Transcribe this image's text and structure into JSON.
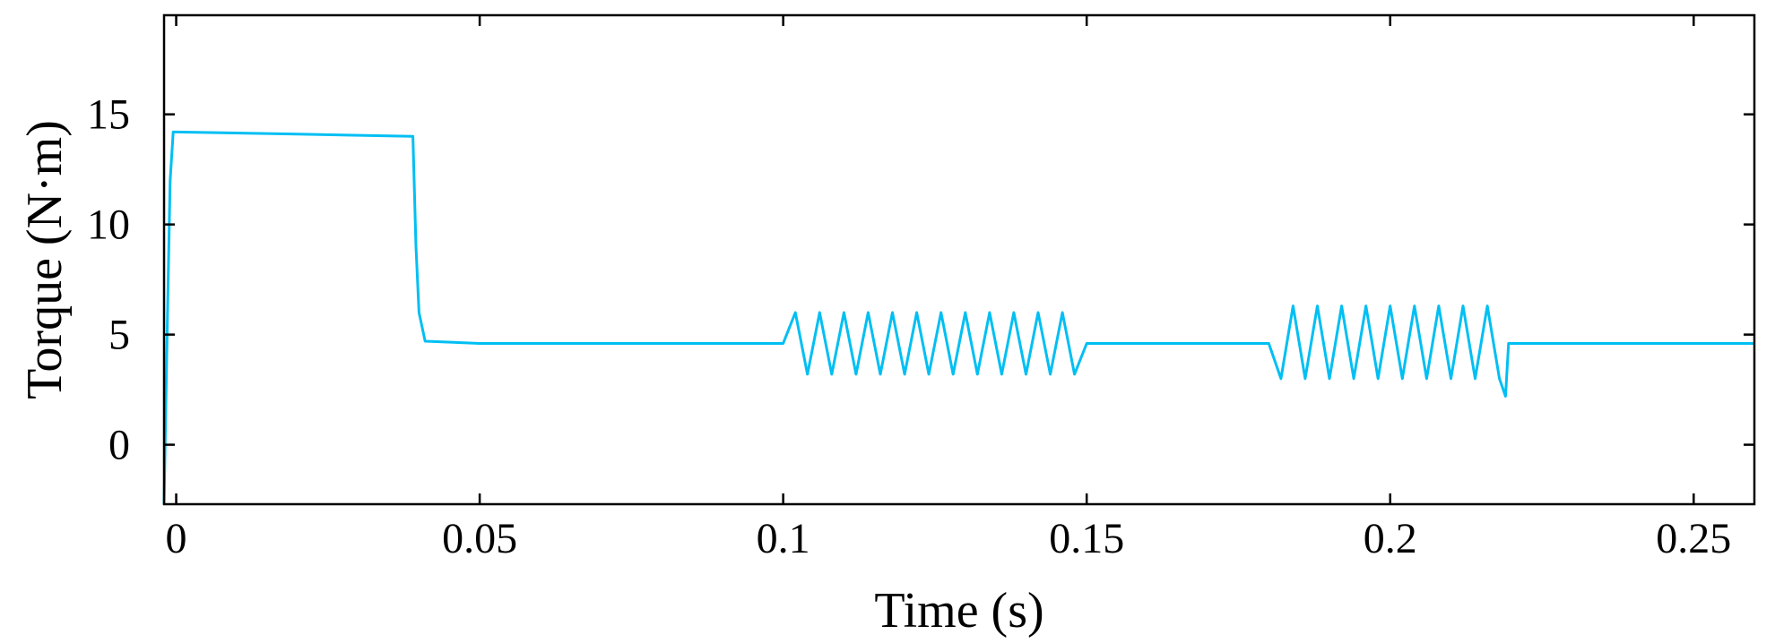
{
  "chart_data": {
    "type": "line",
    "title": "",
    "xlabel": "Time  (s)",
    "ylabel": "Torque (N·m)",
    "xlim": [
      -0.002,
      0.26
    ],
    "ylim": [
      -2.7,
      19.5
    ],
    "grid": false,
    "legend": "none",
    "x_ticks": [
      0,
      0.05,
      0.1,
      0.15,
      0.2,
      0.25
    ],
    "x_tick_labels": [
      "0",
      "0.05",
      "0.1",
      "0.15",
      "0.2",
      "0.25"
    ],
    "y_ticks": [
      0,
      5,
      10,
      15
    ],
    "y_tick_labels": [
      "0",
      "5",
      "10",
      "15"
    ],
    "series": [
      {
        "color": "#00BFF3",
        "x": [
          -0.002,
          -0.0015,
          -0.001,
          -0.0005,
          0.0,
          0.02,
          0.039,
          0.0395,
          0.04,
          0.041,
          0.05,
          0.07,
          0.1,
          0.102,
          0.104,
          0.106,
          0.108,
          0.11,
          0.112,
          0.114,
          0.116,
          0.118,
          0.12,
          0.122,
          0.124,
          0.126,
          0.128,
          0.13,
          0.132,
          0.134,
          0.136,
          0.138,
          0.14,
          0.142,
          0.144,
          0.146,
          0.148,
          0.15,
          0.16,
          0.17,
          0.18,
          0.182,
          0.184,
          0.186,
          0.188,
          0.19,
          0.192,
          0.194,
          0.196,
          0.198,
          0.2,
          0.202,
          0.204,
          0.206,
          0.208,
          0.21,
          0.212,
          0.214,
          0.216,
          0.218,
          0.219,
          0.2195,
          0.22,
          0.225,
          0.23,
          0.24,
          0.25,
          0.26
        ],
        "y": [
          -2.7,
          5.0,
          12.0,
          14.2,
          14.2,
          14.1,
          14.0,
          9.0,
          6.0,
          4.7,
          4.6,
          4.6,
          4.6,
          6.0,
          3.2,
          6.0,
          3.2,
          6.0,
          3.2,
          6.0,
          3.2,
          6.0,
          3.2,
          6.0,
          3.2,
          6.0,
          3.2,
          6.0,
          3.2,
          6.0,
          3.2,
          6.0,
          3.2,
          6.0,
          3.2,
          6.0,
          3.2,
          4.6,
          4.6,
          4.6,
          4.6,
          3.0,
          6.3,
          3.0,
          6.3,
          3.0,
          6.3,
          3.0,
          6.3,
          3.0,
          6.3,
          3.0,
          6.3,
          3.0,
          6.3,
          3.0,
          6.3,
          3.0,
          6.3,
          3.0,
          2.2,
          4.6,
          4.6,
          4.6,
          4.6,
          4.6,
          4.6,
          4.6
        ]
      }
    ]
  }
}
